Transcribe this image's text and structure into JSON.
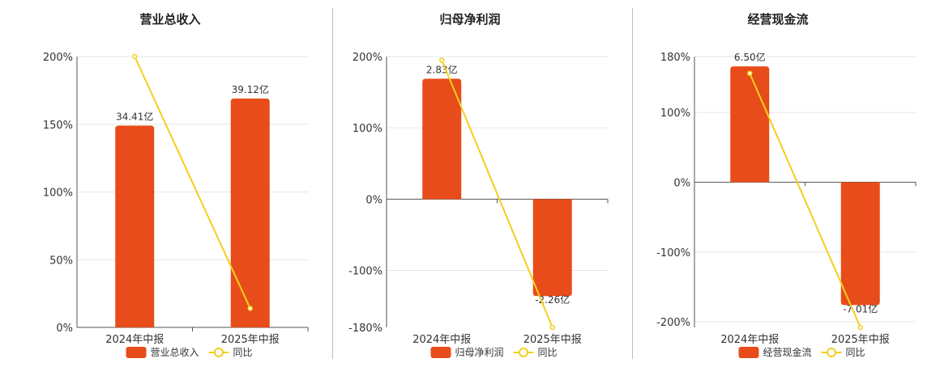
{
  "colors": {
    "bar": "#E84C1A",
    "line": "#F2CF1D",
    "grid": "#E6E6E6",
    "axis": "#555555"
  },
  "chart_data": [
    {
      "type": "bar",
      "title": "营业总收入",
      "categories": [
        "2024年中报",
        "2025年中报"
      ],
      "series": [
        {
          "name": "营业总收入",
          "type": "bar",
          "values": [
            149,
            169
          ],
          "labels": [
            "34.41亿",
            "39.12亿"
          ]
        },
        {
          "name": "同比",
          "type": "line",
          "values": [
            200,
            14
          ]
        }
      ],
      "yticks": [
        0,
        50,
        100,
        150,
        200
      ],
      "tick_labels": [
        "0%",
        "50%",
        "100%",
        "150%",
        "200%"
      ],
      "ylim": [
        0,
        200
      ]
    },
    {
      "type": "bar",
      "title": "归母净利润",
      "categories": [
        "2024年中报",
        "2025年中报"
      ],
      "series": [
        {
          "name": "归母净利润",
          "type": "bar",
          "values": [
            169,
            -136
          ],
          "labels": [
            "2.83亿",
            "-2.26亿"
          ]
        },
        {
          "name": "同比",
          "type": "line",
          "values": [
            195,
            -180
          ]
        }
      ],
      "yticks": [
        -180,
        -100,
        0,
        100,
        200
      ],
      "tick_labels": [
        "-180%",
        "-100%",
        "0%",
        "100%",
        "200%"
      ],
      "ylim": [
        -180,
        200
      ]
    },
    {
      "type": "bar",
      "title": "经营现金流",
      "categories": [
        "2024年中报",
        "2025年中报"
      ],
      "series": [
        {
          "name": "经营现金流",
          "type": "bar",
          "values": [
            166,
            -176
          ],
          "labels": [
            "6.50亿",
            "-7.01亿"
          ]
        },
        {
          "name": "同比",
          "type": "line",
          "values": [
            156,
            -208
          ]
        }
      ],
      "yticks": [
        -200,
        -100,
        0,
        100,
        180
      ],
      "tick_labels": [
        "-200%",
        "-100%",
        "0%",
        "100%",
        "180%"
      ],
      "ylim": [
        -208,
        180
      ]
    }
  ]
}
